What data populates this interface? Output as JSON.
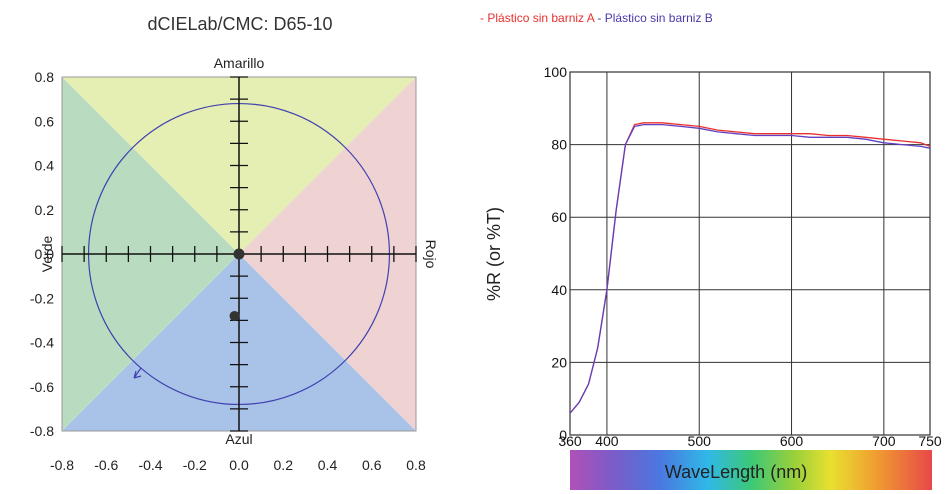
{
  "chart_data": [
    {
      "type": "scatter",
      "title": "dCIELab/CMC: D65-10",
      "xlabel": "",
      "ylabel": "",
      "xlim": [
        -0.8,
        0.8
      ],
      "ylim": [
        -0.8,
        0.8
      ],
      "x_ticks": [
        "-0.8",
        "-0.6",
        "-0.4",
        "-0.2",
        "0.0",
        "0.2",
        "0.4",
        "0.6",
        "0.8"
      ],
      "y_ticks": [
        "0.8",
        "0.6",
        "0.4",
        "0.2",
        "0.0",
        "-0.2",
        "-0.4",
        "-0.6",
        "-0.8"
      ],
      "axis_labels": {
        "top": "Amarillo",
        "bottom": "Azul",
        "left": "Verde",
        "right": "Rojo"
      },
      "quadrant_colors": {
        "top": "#e6efb3",
        "right": "#efd3d3",
        "bottom": "#a9c3e8",
        "left": "#b9dcc0"
      },
      "circle_radius": 0.68,
      "circle_color": "#4040b0",
      "origin_point": {
        "x": 0.0,
        "y": 0.0
      },
      "points": [
        {
          "x": -0.02,
          "y": -0.28
        }
      ],
      "point_color": "#333333",
      "grid": false
    },
    {
      "type": "line",
      "title": "",
      "xlabel": "WaveLength (nm)",
      "ylabel": "%R (or %T)",
      "xlim": [
        360,
        750
      ],
      "ylim": [
        0,
        100
      ],
      "x_ticks": [
        360,
        400,
        500,
        600,
        700,
        750
      ],
      "y_ticks": [
        0,
        20,
        40,
        60,
        80,
        100
      ],
      "grid": true,
      "legend_position": "top",
      "series": [
        {
          "name": "Plástico sin barniz A",
          "color": "#e8302e",
          "x": [
            360,
            370,
            380,
            390,
            400,
            410,
            420,
            430,
            440,
            450,
            460,
            480,
            500,
            520,
            540,
            560,
            580,
            600,
            620,
            640,
            660,
            680,
            700,
            720,
            740,
            750
          ],
          "y": [
            6,
            9,
            14,
            24,
            40,
            62,
            80,
            85.5,
            86,
            86,
            86,
            85.5,
            85,
            84,
            83.5,
            83,
            83,
            83,
            83,
            82.5,
            82.5,
            82,
            81.5,
            81,
            80.5,
            79.5
          ]
        },
        {
          "name": "Plástico sin barniz B",
          "color": "#6040c0",
          "x": [
            360,
            370,
            380,
            390,
            400,
            410,
            420,
            430,
            440,
            450,
            460,
            480,
            500,
            520,
            540,
            560,
            580,
            600,
            620,
            640,
            660,
            680,
            700,
            720,
            740,
            750
          ],
          "y": [
            6,
            9,
            14,
            24,
            40,
            62,
            80,
            85,
            85.5,
            85.5,
            85.5,
            85,
            84.5,
            83.5,
            83,
            82.5,
            82.5,
            82.5,
            82,
            82,
            82,
            81.5,
            80.5,
            80,
            79.5,
            79
          ]
        }
      ]
    }
  ]
}
